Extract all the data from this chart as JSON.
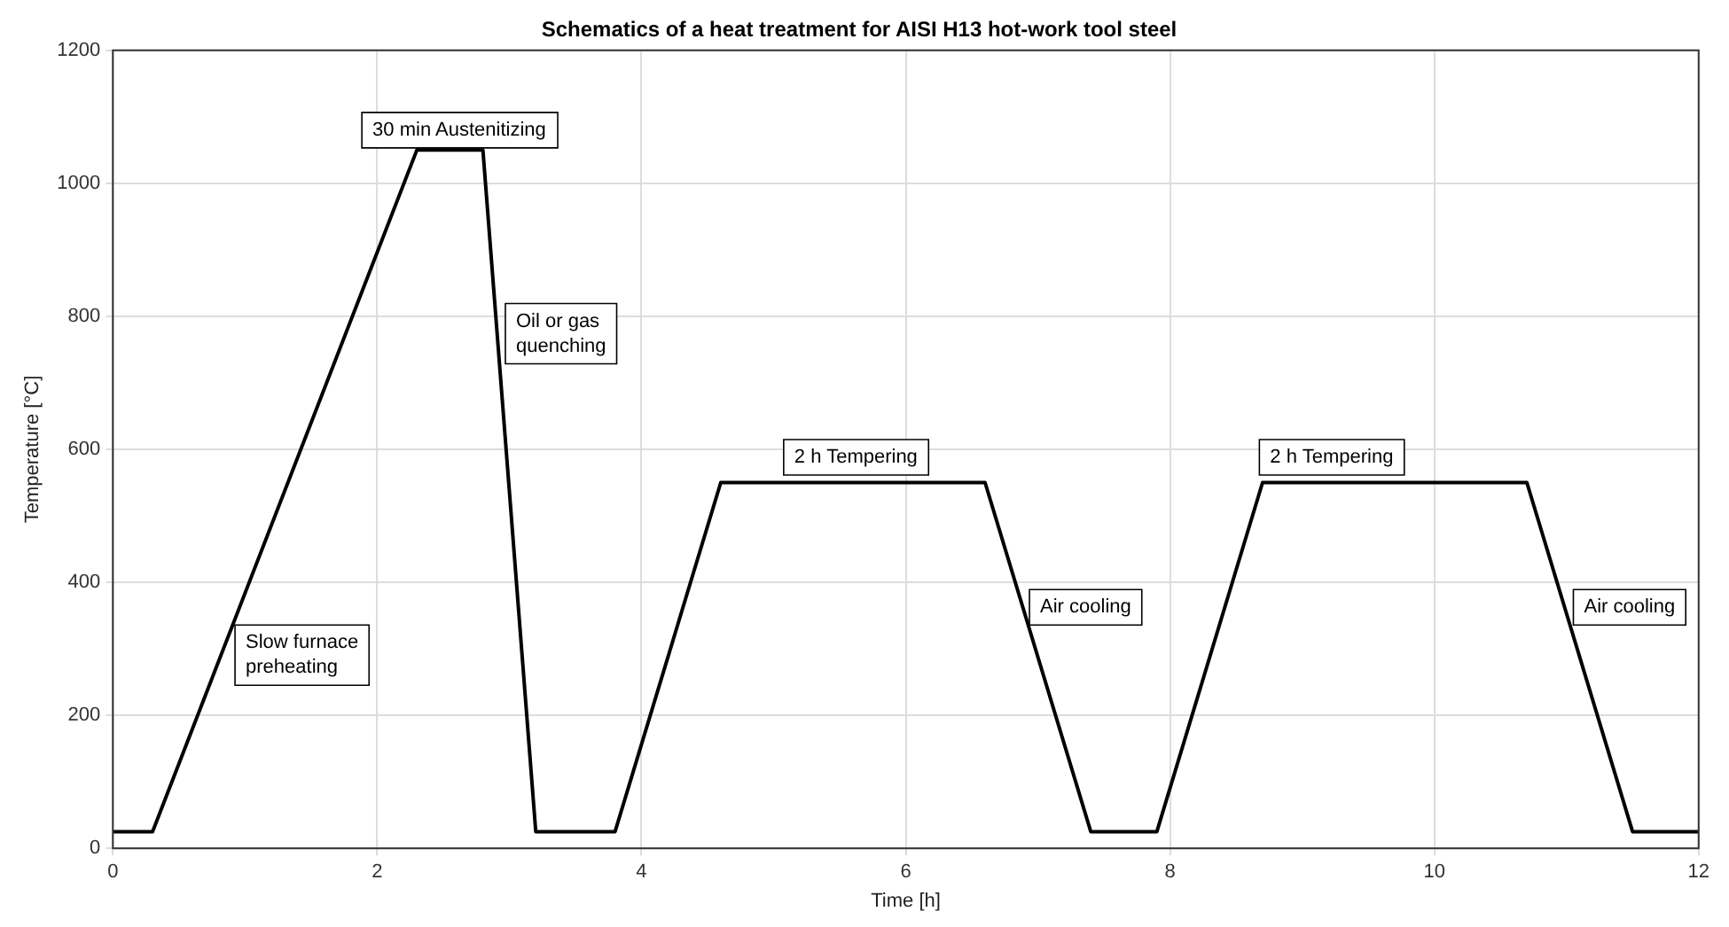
{
  "chart_data": {
    "type": "line",
    "title": "Schematics of a heat treatment for AISI H13 hot-work tool steel",
    "xlabel": "Time [h]",
    "ylabel": "Temperature [°C]",
    "x": [
      0,
      0.3,
      2.3,
      2.8,
      3.2,
      3.8,
      4.6,
      6.6,
      7.4,
      7.9,
      8.7,
      10.7,
      11.5,
      12
    ],
    "series": [
      {
        "color": "#000000",
        "values": [
          25,
          25,
          1050,
          1050,
          25,
          25,
          550,
          550,
          25,
          25,
          550,
          550,
          25,
          25
        ]
      }
    ],
    "xlim": [
      0,
      12
    ],
    "xticks": [
      0,
      2,
      4,
      6,
      8,
      10,
      12
    ],
    "ylim": [
      0,
      1200
    ],
    "yticks": [
      0,
      200,
      400,
      600,
      800,
      1000,
      1200
    ],
    "grid": true,
    "legend": false,
    "marker": "none",
    "line_style": "solid",
    "annotations": [
      "30 min Austenitizing",
      "Oil or gas\nquenching",
      "2 h Tempering",
      "Air cooling",
      "Slow furnace\npreheating",
      "2 h Tempering",
      "Air cooling"
    ]
  }
}
